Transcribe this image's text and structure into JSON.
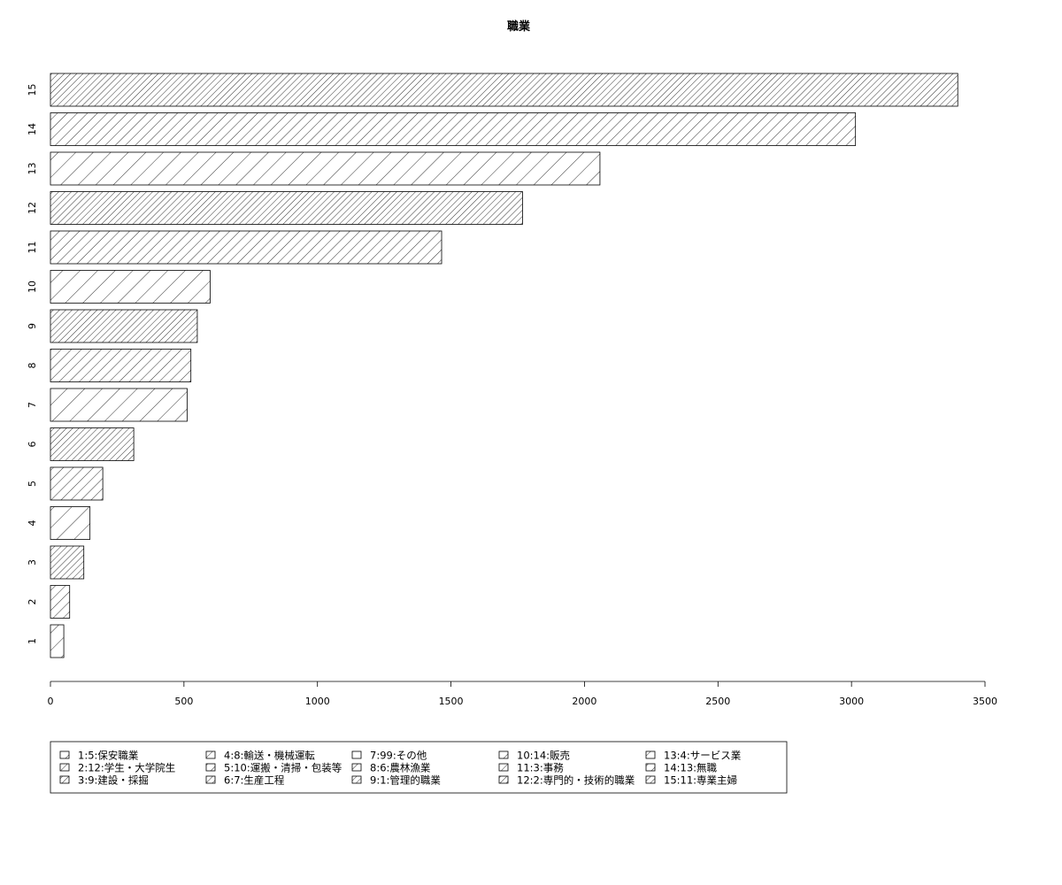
{
  "chart_data": {
    "type": "bar",
    "orientation": "horizontal",
    "title": "職業",
    "xlim": [
      0,
      3500
    ],
    "xticks": [
      0,
      500,
      1000,
      1500,
      2000,
      2500,
      3000,
      3500
    ],
    "categories": [
      "1",
      "2",
      "3",
      "4",
      "5",
      "6",
      "7",
      "8",
      "9",
      "10",
      "11",
      "12",
      "13",
      "14",
      "15"
    ],
    "values": [
      50,
      72,
      125,
      148,
      196,
      312,
      512,
      526,
      550,
      598,
      1465,
      1768,
      2058,
      3015,
      3398
    ],
    "fill_style": "hatched",
    "legend_placement": "bottom-left",
    "legend": [
      "1:5:保安職業",
      "2:12:学生・大学院生",
      "3:9:建設・採掘",
      "4:8:輸送・機械運転",
      "5:10:運搬・清掃・包装等",
      "6:7:生産工程",
      "7:99:その他",
      "8:6:農林漁業",
      "9:1:管理的職業",
      "10:14:販売",
      "11:3:事務",
      "12:2:専門的・技術的職業",
      "13:4:サービス業",
      "14:13:無職",
      "15:11:専業主婦"
    ]
  }
}
